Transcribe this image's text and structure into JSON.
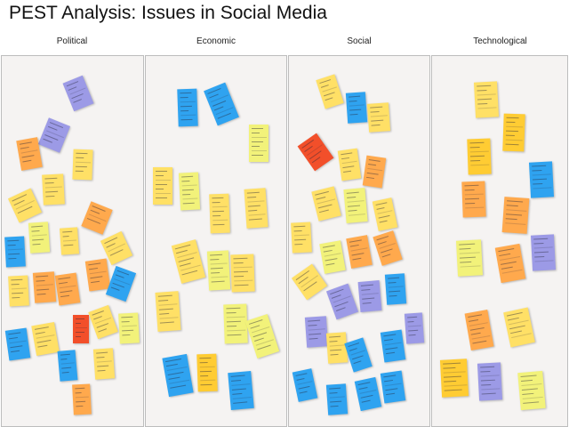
{
  "title": "PEST Analysis: Issues in Social Media",
  "columns": [
    {
      "name": "Political"
    },
    {
      "name": "Economic"
    },
    {
      "name": "Social"
    },
    {
      "name": "Technological"
    }
  ],
  "colors": {
    "yellow": "#ffe066",
    "lightyellow": "#f2f27a",
    "gold": "#ffcc33",
    "orange": "#ffa94d",
    "red": "#f24f2a",
    "blue": "#2fa3f0",
    "purple": "#9c9ae6"
  }
}
